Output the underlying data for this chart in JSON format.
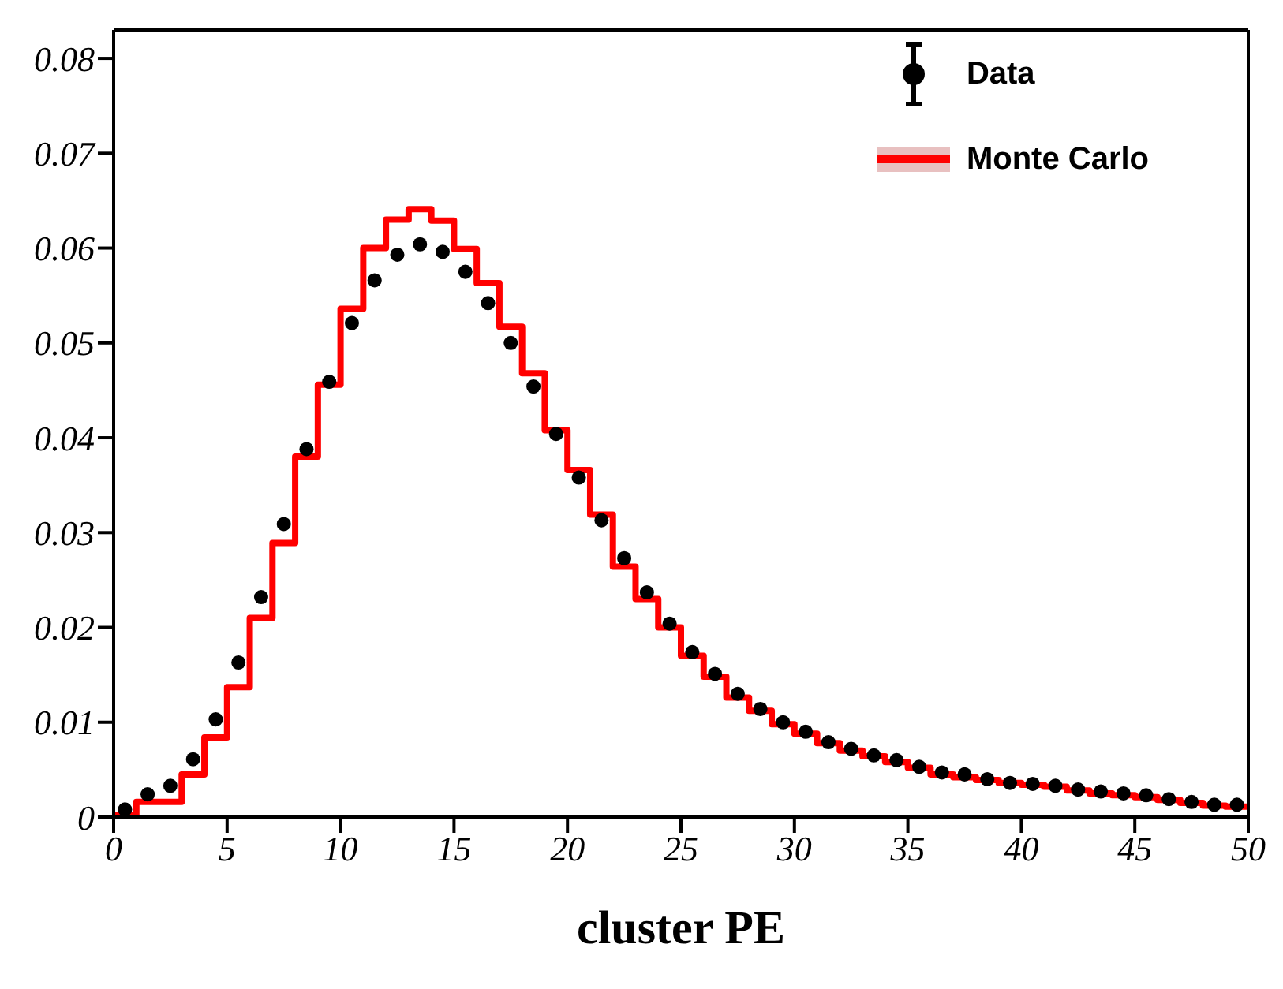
{
  "chart_data": {
    "type": "histogram",
    "xlabel": "cluster PE",
    "xlim": [
      0,
      50
    ],
    "xticks": [
      0,
      5,
      10,
      15,
      20,
      25,
      30,
      35,
      40,
      45,
      50
    ],
    "ylim": [
      0,
      0.083
    ],
    "yticks": [
      0,
      0.01,
      0.02,
      0.03,
      0.04,
      0.05,
      0.06,
      0.07,
      0.08
    ],
    "grid": false,
    "legend": "top right",
    "marker": "circle",
    "bins": [
      0,
      1,
      2,
      3,
      4,
      5,
      6,
      7,
      8,
      9,
      10,
      11,
      12,
      13,
      14,
      15,
      16,
      17,
      18,
      19,
      20,
      21,
      22,
      23,
      24,
      25,
      26,
      27,
      28,
      29,
      30,
      31,
      32,
      33,
      34,
      35,
      36,
      37,
      38,
      39,
      40,
      41,
      42,
      43,
      44,
      45,
      46,
      47,
      48,
      49,
      50
    ],
    "series": [
      {
        "name": "Data",
        "type": "scatter",
        "color": "#000000",
        "x": [
          0.5,
          1.5,
          2.5,
          3.5,
          4.5,
          5.5,
          6.5,
          7.5,
          8.5,
          9.5,
          10.5,
          11.5,
          12.5,
          13.5,
          14.5,
          15.5,
          16.5,
          17.5,
          18.5,
          19.5,
          20.5,
          21.5,
          22.5,
          23.5,
          24.5,
          25.5,
          26.5,
          27.5,
          28.5,
          29.5,
          30.5,
          31.5,
          32.5,
          33.5,
          34.5,
          35.5,
          36.5,
          37.5,
          38.5,
          39.5,
          40.5,
          41.5,
          42.5,
          43.5,
          44.5,
          45.5,
          46.5,
          47.5,
          48.5,
          49.5
        ],
        "values": [
          0.0008,
          0.0024,
          0.0033,
          0.0061,
          0.0103,
          0.0163,
          0.0232,
          0.0309,
          0.0388,
          0.0459,
          0.0521,
          0.0566,
          0.0593,
          0.0604,
          0.0596,
          0.0575,
          0.0542,
          0.05,
          0.0454,
          0.0404,
          0.0358,
          0.0313,
          0.0273,
          0.0237,
          0.0204,
          0.0174,
          0.0151,
          0.013,
          0.0114,
          0.01,
          0.009,
          0.0079,
          0.0072,
          0.0065,
          0.006,
          0.0053,
          0.0047,
          0.0045,
          0.004,
          0.0036,
          0.0035,
          0.0033,
          0.0029,
          0.0027,
          0.0025,
          0.0023,
          0.0019,
          0.0016,
          0.0013,
          0.0013
        ]
      },
      {
        "name": "Monte Carlo",
        "color": "#ff0000",
        "values": [
          0.0002,
          0.0016,
          0.0016,
          0.0045,
          0.0084,
          0.0137,
          0.021,
          0.0289,
          0.038,
          0.0456,
          0.0536,
          0.06,
          0.063,
          0.0641,
          0.0629,
          0.0599,
          0.0563,
          0.0517,
          0.0468,
          0.0408,
          0.0366,
          0.0319,
          0.0264,
          0.023,
          0.02,
          0.017,
          0.0148,
          0.0126,
          0.0112,
          0.0098,
          0.0088,
          0.0078,
          0.007,
          0.0064,
          0.0058,
          0.0052,
          0.0045,
          0.0042,
          0.0039,
          0.0036,
          0.0034,
          0.0032,
          0.0028,
          0.0025,
          0.0023,
          0.0021,
          0.0018,
          0.0015,
          0.0012,
          0.0011
        ]
      }
    ]
  }
}
